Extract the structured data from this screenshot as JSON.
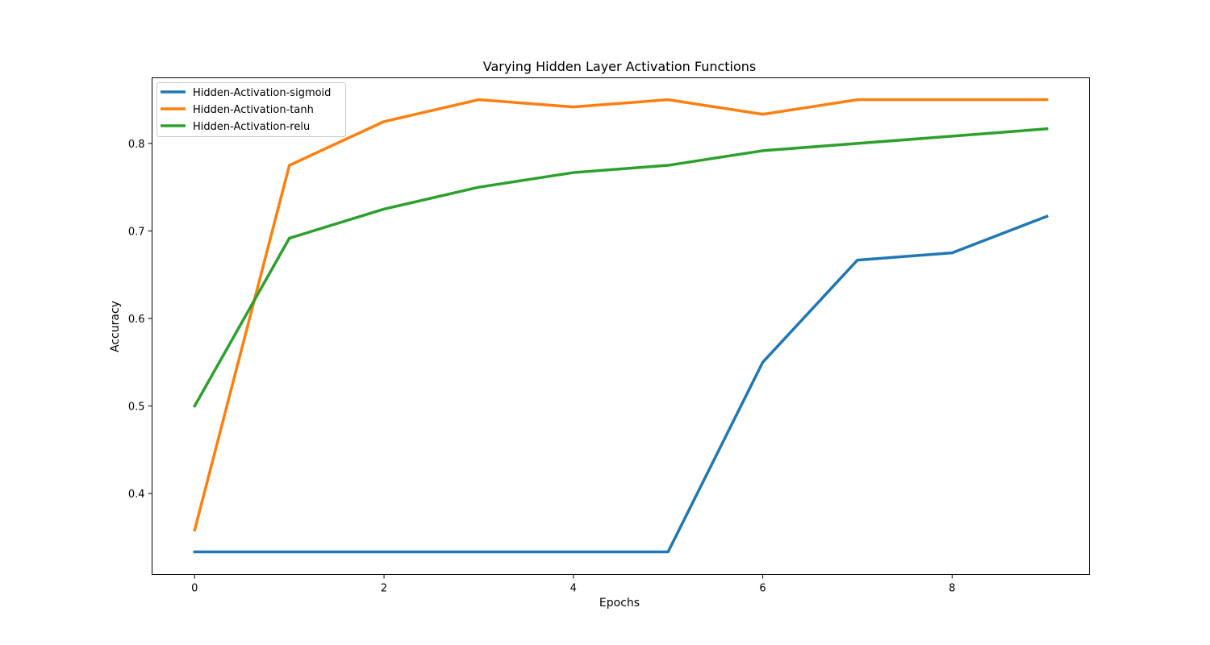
{
  "chart_data": {
    "type": "line",
    "title": "Varying Hidden Layer Activation Functions",
    "xlabel": "Epochs",
    "ylabel": "Accuracy",
    "x": [
      0,
      1,
      2,
      3,
      4,
      5,
      6,
      7,
      8,
      9
    ],
    "xlim": [
      -0.45,
      9.45
    ],
    "ylim": [
      0.3075,
      0.875
    ],
    "xticks": [
      0,
      2,
      4,
      6,
      8
    ],
    "yticks": [
      0.4,
      0.5,
      0.6,
      0.7,
      0.8
    ],
    "xtick_labels": [
      "0",
      "2",
      "4",
      "6",
      "8"
    ],
    "ytick_labels": [
      "0.4",
      "0.5",
      "0.6",
      "0.7",
      "0.8"
    ],
    "grid": false,
    "legend_position": "top-left",
    "series": [
      {
        "name": "Hidden-Activation-sigmoid",
        "color": "#1f77b4",
        "values": [
          0.3333,
          0.3333,
          0.3333,
          0.3333,
          0.3333,
          0.3333,
          0.55,
          0.6667,
          0.675,
          0.7167
        ]
      },
      {
        "name": "Hidden-Activation-tanh",
        "color": "#ff7f0e",
        "values": [
          0.3583,
          0.775,
          0.825,
          0.85,
          0.8417,
          0.85,
          0.8333,
          0.85,
          0.85,
          0.85
        ]
      },
      {
        "name": "Hidden-Activation-relu",
        "color": "#2ca02c",
        "values": [
          0.5,
          0.6917,
          0.725,
          0.75,
          0.7667,
          0.775,
          0.7917,
          0.8,
          0.8083,
          0.8167
        ]
      }
    ]
  }
}
